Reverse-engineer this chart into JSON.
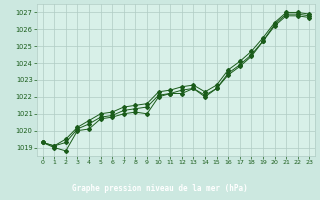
{
  "title": "Graphe pression niveau de la mer (hPa)",
  "bg_color": "#cce8e0",
  "plot_bg_color": "#d8f0e8",
  "grid_color": "#b0ccc4",
  "line_color": "#1a5c1a",
  "text_color": "#1a5c1a",
  "label_bg_color": "#2a6b2a",
  "label_text_color": "#ffffff",
  "xlim": [
    -0.5,
    23.5
  ],
  "ylim": [
    1018.5,
    1027.5
  ],
  "yticks": [
    1019,
    1020,
    1021,
    1022,
    1023,
    1024,
    1025,
    1026,
    1027
  ],
  "xticks": [
    0,
    1,
    2,
    3,
    4,
    5,
    6,
    7,
    8,
    9,
    10,
    11,
    12,
    13,
    14,
    15,
    16,
    17,
    18,
    19,
    20,
    21,
    22,
    23
  ],
  "line_main": [
    1019.3,
    1019.0,
    1018.8,
    1020.0,
    1020.1,
    1020.7,
    1020.8,
    1021.0,
    1021.1,
    1021.0,
    1022.0,
    1022.2,
    1022.2,
    1022.5,
    1022.0,
    1022.5,
    1023.3,
    1023.8,
    1024.4,
    1025.3,
    1026.2,
    1026.8,
    1026.8,
    1026.7
  ],
  "line_upper": [
    1019.3,
    1019.1,
    1019.5,
    1020.2,
    1020.6,
    1021.0,
    1021.1,
    1021.4,
    1021.5,
    1021.6,
    1022.3,
    1022.4,
    1022.6,
    1022.7,
    1022.3,
    1022.7,
    1023.6,
    1024.1,
    1024.7,
    1025.5,
    1026.4,
    1027.0,
    1027.0,
    1026.9
  ],
  "line_lower": [
    1019.3,
    1019.1,
    1019.3,
    1020.1,
    1020.4,
    1020.8,
    1020.9,
    1021.2,
    1021.3,
    1021.4,
    1022.1,
    1022.2,
    1022.4,
    1022.5,
    1022.1,
    1022.5,
    1023.4,
    1023.9,
    1024.5,
    1025.3,
    1026.3,
    1026.9,
    1026.9,
    1026.8
  ]
}
